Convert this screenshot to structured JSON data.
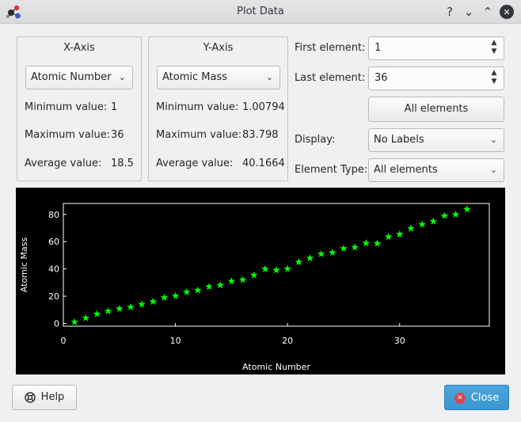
{
  "window": {
    "title": "Plot Data",
    "help_glyph": "?",
    "minimize_glyph": "⌄",
    "maximize_glyph": "⌃",
    "close_glyph": "✕"
  },
  "x_axis": {
    "title": "X-Axis",
    "selected": "Atomic Number",
    "min_label": "Minimum value:",
    "min_value": "1",
    "max_label": "Maximum value:",
    "max_value": "36",
    "avg_label": "Average value:",
    "avg_value": "18.5"
  },
  "y_axis": {
    "title": "Y-Axis",
    "selected": "Atomic Mass",
    "min_label": "Minimum value:",
    "min_value": "1.00794",
    "max_label": "Maximum value:",
    "max_value": "83.798",
    "avg_label": "Average value:",
    "avg_value": "40.1664"
  },
  "range": {
    "first_label": "First element:",
    "first_value": "1",
    "last_label": "Last element:",
    "last_value": "36",
    "all_button": "All elements"
  },
  "display": {
    "label": "Display:",
    "selected": "No Labels"
  },
  "element_type": {
    "label": "Element Type:",
    "selected": "All elements"
  },
  "footer": {
    "help_label": "Help",
    "close_label": "Close"
  },
  "icons": {
    "app": "molecule-icon",
    "help": "lifebuoy-icon",
    "close": "close-circle-icon"
  },
  "colors": {
    "accent": "#3daee9",
    "plot_background": "#000000",
    "plot_marker": "#00ff00",
    "close_icon": "#da4453"
  },
  "chart_data": {
    "type": "scatter",
    "marker": "star",
    "xlabel": "Atomic Number",
    "ylabel": "Atomic Mass",
    "xlim": [
      0,
      38
    ],
    "ylim": [
      -2,
      88
    ],
    "x_ticks": [
      0,
      10,
      20,
      30
    ],
    "y_ticks": [
      0,
      20,
      40,
      60,
      80
    ],
    "series": [
      {
        "x": [
          1,
          2,
          3,
          4,
          5,
          6,
          7,
          8,
          9,
          10,
          11,
          12,
          13,
          14,
          15,
          16,
          17,
          18,
          19,
          20,
          21,
          22,
          23,
          24,
          25,
          26,
          27,
          28,
          29,
          30,
          31,
          32,
          33,
          34,
          35,
          36
        ],
        "values": [
          1.008,
          4.003,
          6.94,
          9.012,
          10.81,
          12.011,
          14.007,
          15.999,
          18.998,
          20.18,
          22.99,
          24.305,
          26.982,
          28.085,
          30.974,
          32.06,
          35.45,
          39.948,
          39.098,
          40.078,
          44.956,
          47.867,
          50.942,
          51.996,
          54.938,
          55.845,
          58.933,
          58.693,
          63.546,
          65.38,
          69.723,
          72.63,
          74.922,
          78.971,
          79.904,
          83.798
        ]
      }
    ]
  }
}
